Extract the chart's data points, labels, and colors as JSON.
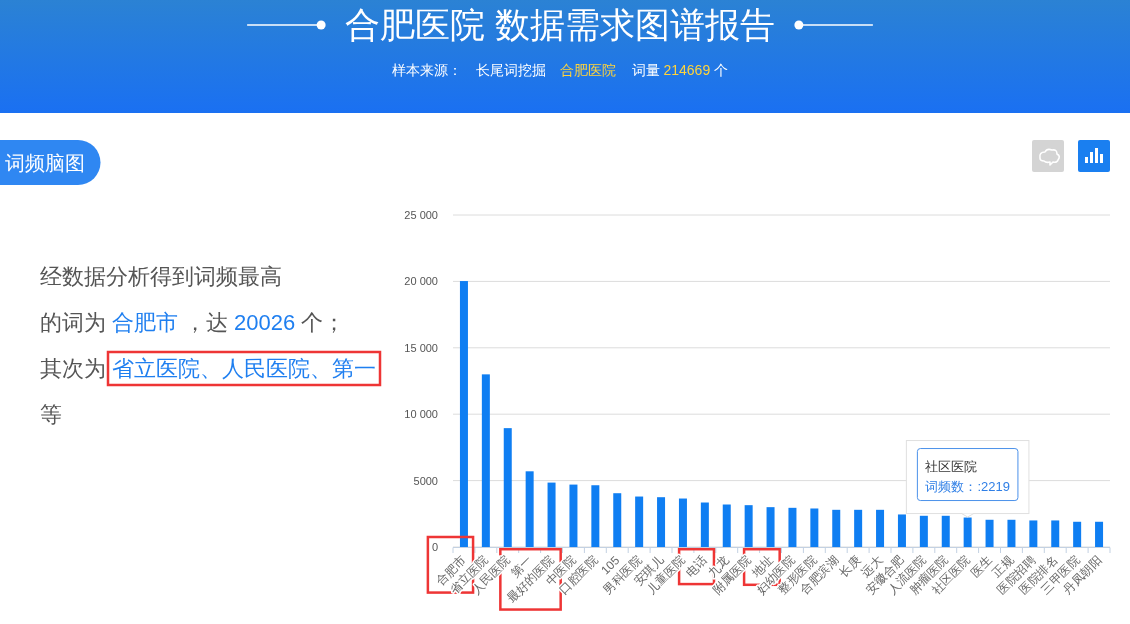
{
  "chart_data": {
    "type": "bar",
    "title": "合肥医院 数据需求图谱报告",
    "subtitle": "样本来源： 长尾词挖掘 合肥医院 词量 214669 个",
    "categories": [
      "合肥市",
      "省立医院",
      "人民医院",
      "第一",
      "最好的医院",
      "中医院",
      "口腔医院",
      "105",
      "男科医院",
      "安琪儿",
      "儿童医院",
      "电话",
      "九龙",
      "附属医院",
      "地址",
      "妇幼医院",
      "整形医院",
      "合肥滨湖",
      "长庚",
      "远大",
      "安徽合肥",
      "人流医院",
      "肿瘤医院",
      "社区医院",
      "医生",
      "正规",
      "医院招聘",
      "医院排名",
      "三甲医院",
      "丹凤朝阳"
    ],
    "values": [
      20026,
      13000,
      8950,
      5700,
      4850,
      4700,
      4650,
      4050,
      3800,
      3750,
      3650,
      3350,
      3200,
      3150,
      3000,
      2950,
      2900,
      2800,
      2800,
      2800,
      2450,
      2350,
      2350,
      2219,
      2050,
      2050,
      2000,
      2000,
      1900,
      1900
    ],
    "color": "#0f7ef2",
    "ylim": [
      0,
      25000
    ],
    "yticks": [
      0,
      5000,
      {
        "value": 10000,
        "label": "10 000"
      },
      {
        "value": 15000,
        "label": "15 000"
      },
      {
        "value": 20000,
        "label": "20 000"
      },
      {
        "value": 25000,
        "label": "25 000"
      }
    ],
    "grid": "y",
    "annotations": [
      "词频脑图",
      "经数据分析得到词频最高",
      "的词为",
      "合肥市",
      "，达",
      "20026",
      "个；",
      "其次为",
      "省立医院、人民医院、第一",
      "等",
      "社区医院",
      {
        "text": "词频数：:2219",
        "x": "社区医院",
        "y": 2219
      }
    ]
  }
}
